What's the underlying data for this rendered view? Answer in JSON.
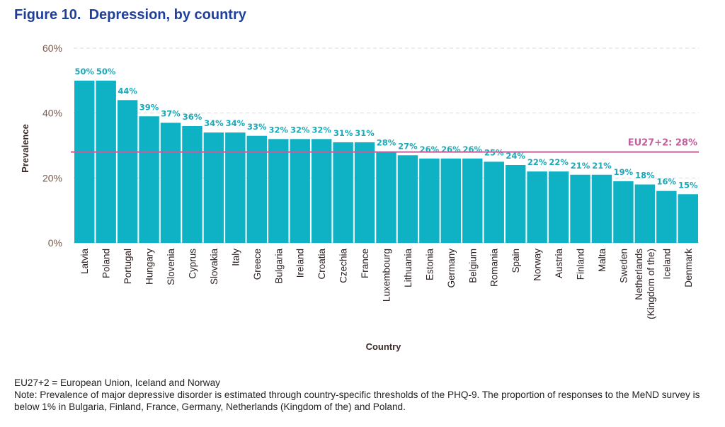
{
  "title": "Figure 10.  Depression, by country",
  "chart_data": {
    "type": "bar",
    "title": "Figure 10.  Depression, by country",
    "xlabel": "Country",
    "ylabel": "Prevalence",
    "ylim": [
      0,
      60
    ],
    "yticks": [
      "0%",
      "20%",
      "40%",
      "60%"
    ],
    "categories": [
      "Latvia",
      "Poland",
      "Portugal",
      "Hungary",
      "Slovenia",
      "Cyprus",
      "Slovakia",
      "Italy",
      "Greece",
      "Bulgaria",
      "Ireland",
      "Croatia",
      "Czechia",
      "France",
      "Luxembourg",
      "Lithuania",
      "Estonia",
      "Germany",
      "Belgium",
      "Romania",
      "Spain",
      "Norway",
      "Austria",
      "Finland",
      "Malta",
      "Sweden",
      "Netherlands (Kingdom of the)",
      "Iceland",
      "Denmark"
    ],
    "values": [
      50,
      50,
      44,
      39,
      37,
      36,
      34,
      34,
      33,
      32,
      32,
      32,
      31,
      31,
      28,
      27,
      26,
      26,
      26,
      25,
      24,
      22,
      22,
      21,
      21,
      19,
      18,
      16,
      15
    ],
    "value_labels": [
      "50%",
      "50%",
      "44%",
      "39%",
      "37%",
      "36%",
      "34%",
      "34%",
      "33%",
      "32%",
      "32%",
      "32%",
      "31%",
      "31%",
      "28%",
      "27%",
      "26%",
      "26%",
      "26%",
      "25%",
      "24%",
      "22%",
      "22%",
      "21%",
      "21%",
      "19%",
      "18%",
      "16%",
      "15%"
    ],
    "reference_line": {
      "label": "EU27+2: 28%",
      "value": 28
    },
    "grid": "horizontal dashed",
    "bar_color": "#0fb2c4",
    "reference_color": "#c0609a"
  },
  "notes": [
    "EU27+2 = European Union, Iceland and Norway",
    "Note: Prevalence of major depressive disorder is estimated through country-specific thresholds of the PHQ-9. The proportion of responses to the MeND survey is below 1% in Bulgaria, Finland, France, Germany, Netherlands (Kingdom of the) and Poland."
  ]
}
